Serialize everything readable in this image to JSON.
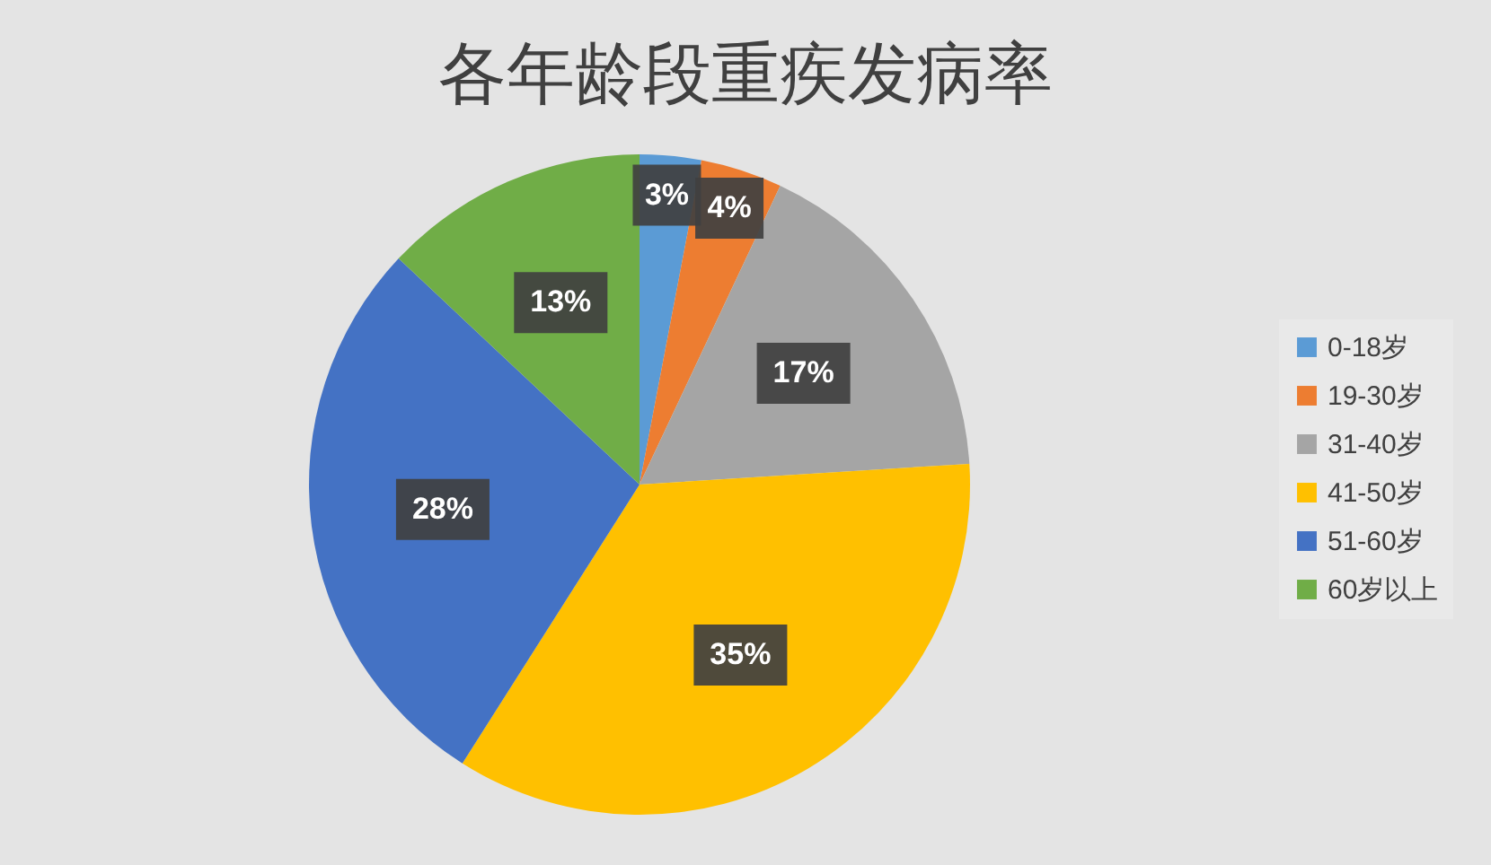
{
  "chart_data": {
    "type": "pie",
    "title": "各年龄段重疾发病率",
    "categories": [
      "0-18岁",
      "19-30岁",
      "31-40岁",
      "41-50岁",
      "51-60岁",
      "60岁以上"
    ],
    "values": [
      3,
      4,
      17,
      35,
      28,
      13
    ],
    "colors": [
      "#5b9bd5",
      "#ed7d31",
      "#a5a5a5",
      "#ffc000",
      "#4472c4",
      "#70ad47"
    ],
    "value_labels": [
      "3%",
      "4%",
      "17%",
      "35%",
      "28%",
      "13%"
    ],
    "legend": "right"
  }
}
